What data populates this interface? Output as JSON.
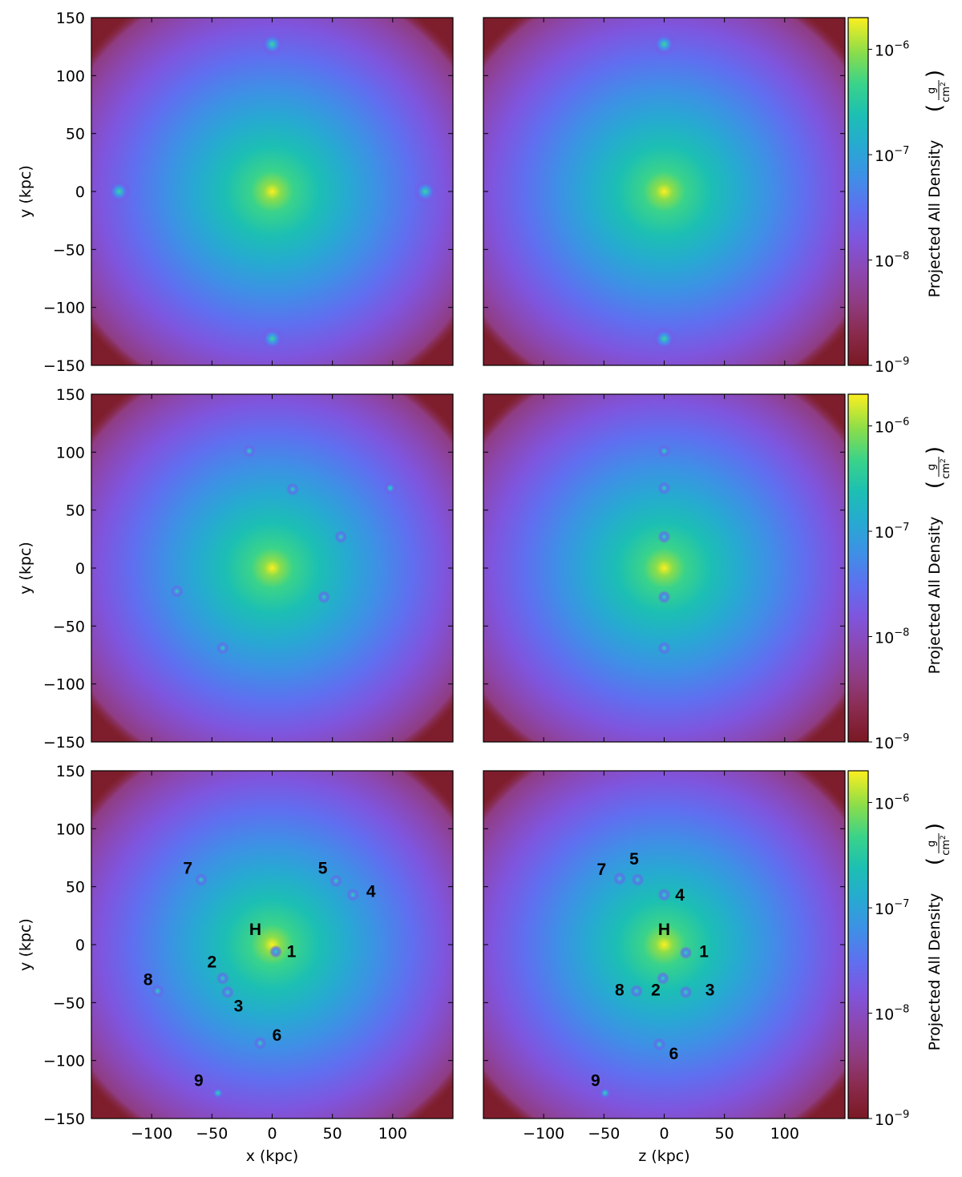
{
  "chart_data": {
    "type": "heatmap",
    "xlim": [
      -150,
      150
    ],
    "ylim": [
      -150,
      150
    ],
    "xticks": [
      -100,
      -50,
      0,
      50,
      100
    ],
    "yticks": [
      150,
      100,
      50,
      0,
      -50,
      -100,
      -150
    ],
    "ylabel": "y (kpc)",
    "xlabels": [
      "x (kpc)",
      "z (kpc)"
    ],
    "colorbar": {
      "label": "Projected All Density",
      "unit_num": "g",
      "unit_den": "cm",
      "unit_exp": "2",
      "scale": "log",
      "range": [
        1e-09,
        2e-06
      ],
      "ticks": [
        "10",
        "10",
        "10",
        "10"
      ],
      "tick_exponents": [
        "−6",
        "−7",
        "−8",
        "−9"
      ],
      "tick_values": [
        1e-06,
        1e-07,
        1e-08,
        1e-09
      ],
      "colormap": [
        "#7a1822",
        "#8a2a4c",
        "#8f3c82",
        "#8c47b0",
        "#7f55de",
        "#5f6ff0",
        "#3f8fe6",
        "#27a9d2",
        "#1cbfb3",
        "#3ad38a",
        "#8bdd4a",
        "#fbef1f"
      ]
    },
    "panels": [
      {
        "row": 1,
        "projection": "x-y",
        "halo": [
          0,
          0
        ],
        "subhalos": [
          {
            "x": 0,
            "y": 127
          },
          {
            "x": -127,
            "y": 0
          },
          {
            "x": 127,
            "y": 0
          },
          {
            "x": 0,
            "y": -127
          }
        ]
      },
      {
        "row": 1,
        "projection": "z-y",
        "halo": [
          0,
          0
        ],
        "subhalos": [
          {
            "x": 0,
            "y": 127
          },
          {
            "x": 0,
            "y": -127
          }
        ]
      },
      {
        "row": 2,
        "projection": "x-y",
        "halo": [
          0,
          0
        ],
        "subhalos": [
          {
            "x": -19,
            "y": 101
          },
          {
            "x": 17,
            "y": 68
          },
          {
            "x": 98,
            "y": 69
          },
          {
            "x": 57,
            "y": 27
          },
          {
            "x": -79,
            "y": -20
          },
          {
            "x": 43,
            "y": -25
          },
          {
            "x": -41,
            "y": -69
          }
        ]
      },
      {
        "row": 2,
        "projection": "z-y",
        "halo": [
          0,
          0
        ],
        "subhalos": [
          {
            "x": 0,
            "y": 101
          },
          {
            "x": 0,
            "y": 69
          },
          {
            "x": 0,
            "y": 27
          },
          {
            "x": 0,
            "y": -25
          },
          {
            "x": 0,
            "y": -69
          }
        ]
      },
      {
        "row": 3,
        "projection": "x-y",
        "halo": [
          0,
          0
        ],
        "subhalos": [
          {
            "id": "1",
            "x": 3,
            "y": -6
          },
          {
            "id": "2",
            "x": -41,
            "y": -29
          },
          {
            "id": "3",
            "x": -37,
            "y": -41
          },
          {
            "id": "4",
            "x": 67,
            "y": 43
          },
          {
            "id": "5",
            "x": 53,
            "y": 55
          },
          {
            "id": "6",
            "x": -10,
            "y": -85
          },
          {
            "id": "7",
            "x": -59,
            "y": 56
          },
          {
            "id": "8",
            "x": -95,
            "y": -40
          },
          {
            "id": "9",
            "x": -45,
            "y": -128
          }
        ]
      },
      {
        "row": 3,
        "projection": "z-y",
        "halo": [
          0,
          0
        ],
        "subhalos": [
          {
            "id": "1",
            "x": 18,
            "y": -7
          },
          {
            "id": "2",
            "x": -1,
            "y": -29
          },
          {
            "id": "3",
            "x": 18,
            "y": -41
          },
          {
            "id": "4",
            "x": 0,
            "y": 43
          },
          {
            "id": "5",
            "x": -22,
            "y": 56
          },
          {
            "id": "6",
            "x": -4,
            "y": -86
          },
          {
            "id": "7",
            "x": -37,
            "y": 57
          },
          {
            "id": "8",
            "x": -23,
            "y": -40
          },
          {
            "id": "9",
            "x": -49,
            "y": -128
          }
        ]
      }
    ],
    "labels_xy": [
      {
        "text": "7",
        "x": -70,
        "y": 66
      },
      {
        "text": "5",
        "x": 42,
        "y": 66
      },
      {
        "text": "4",
        "x": 82,
        "y": 46
      },
      {
        "text": "H",
        "x": -14,
        "y": 13
      },
      {
        "text": "1",
        "x": 16,
        "y": -6
      },
      {
        "text": "2",
        "x": -50,
        "y": -15
      },
      {
        "text": "8",
        "x": -103,
        "y": -30
      },
      {
        "text": "3",
        "x": -28,
        "y": -53
      },
      {
        "text": "6",
        "x": 4,
        "y": -78
      },
      {
        "text": "9",
        "x": -61,
        "y": -117
      }
    ],
    "labels_zy": [
      {
        "text": "7",
        "x": -52,
        "y": 65
      },
      {
        "text": "5",
        "x": -25,
        "y": 74
      },
      {
        "text": "4",
        "x": 13,
        "y": 43
      },
      {
        "text": "H",
        "x": 0,
        "y": 13
      },
      {
        "text": "1",
        "x": 33,
        "y": -6
      },
      {
        "text": "8",
        "x": -37,
        "y": -39
      },
      {
        "text": "2",
        "x": -7,
        "y": -39
      },
      {
        "text": "3",
        "x": 38,
        "y": -39
      },
      {
        "text": "6",
        "x": 8,
        "y": -94
      },
      {
        "text": "9",
        "x": -57,
        "y": -117
      }
    ]
  }
}
